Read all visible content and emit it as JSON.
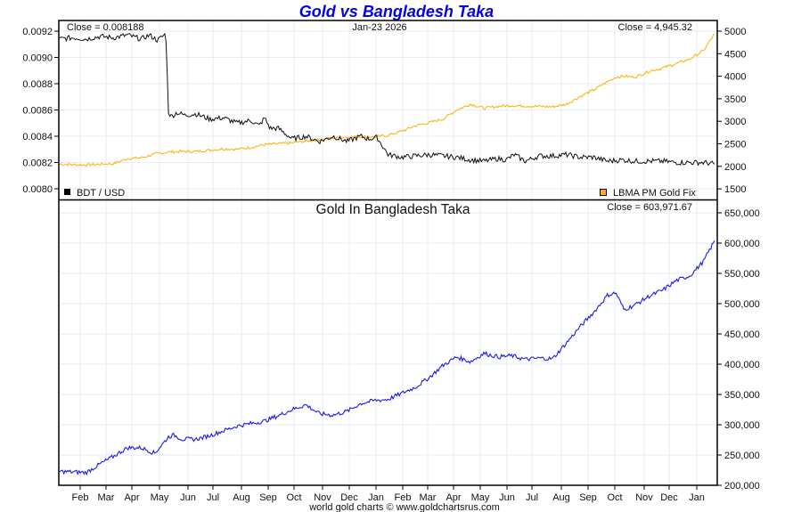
{
  "chart_data": [
    {
      "type": "line",
      "title": "Gold vs Bangladesh Taka",
      "date_label": "Jan-23  2026",
      "left_close_label": "Close = 0.008188",
      "right_close_label": "Close = 4,945.32",
      "x_ticks": [
        "Feb",
        "Mar",
        "Apr",
        "May",
        "Jun",
        "Jul",
        "Aug",
        "Sep",
        "Oct",
        "Nov",
        "Dec",
        "Jan",
        "Feb",
        "Mar",
        "Apr",
        "May",
        "Jun",
        "Jul",
        "Aug",
        "Sep",
        "Oct",
        "Nov",
        "Dec",
        "Jan"
      ],
      "left_axis": {
        "ticks": [
          "0.0092",
          "0.0090",
          "0.0088",
          "0.0086",
          "0.0084",
          "0.0082",
          "0.0080"
        ],
        "ylim": [
          0.00792,
          0.00928
        ]
      },
      "right_axis": {
        "ticks": [
          "5000",
          "4500",
          "4000",
          "3500",
          "3000",
          "2500",
          "2000",
          "1500"
        ],
        "ylim": [
          1330,
          5150
        ]
      },
      "grid": true,
      "legend": [
        {
          "name": "BDT / USD",
          "color": "#000000",
          "position": "bottom-left"
        },
        {
          "name": "LBMA PM Gold Fix",
          "color": "#ffb000",
          "position": "bottom-right"
        }
      ],
      "series": [
        {
          "name": "BDT / USD",
          "axis": "left",
          "color": "#111111",
          "months_from_start": [
            0,
            0.5,
            1,
            1.5,
            2,
            2.5,
            3,
            3.3,
            3.6,
            3.9,
            4.0,
            4.1,
            4.3,
            4.6,
            5,
            5.5,
            6,
            6.5,
            7,
            7.3,
            7.5,
            7.7,
            8,
            8.5,
            9,
            9.5,
            10,
            10.5,
            11,
            11.3,
            11.6,
            12,
            12.5,
            13,
            13.5,
            14,
            14.5,
            15,
            15.5,
            16,
            16.3,
            16.6,
            17,
            17.5,
            18,
            18.5,
            19,
            19.5,
            20,
            20.5,
            21,
            21.5,
            22,
            22.5,
            23,
            23.5,
            23.9
          ],
          "values": [
            0.00914,
            0.00915,
            0.00914,
            0.00916,
            0.00915,
            0.00917,
            0.00914,
            0.00917,
            0.00913,
            0.00918,
            0.00858,
            0.00855,
            0.00858,
            0.00856,
            0.00857,
            0.00853,
            0.00854,
            0.0085,
            0.00852,
            0.00848,
            0.00854,
            0.00846,
            0.00846,
            0.00838,
            0.0084,
            0.00836,
            0.0084,
            0.00836,
            0.0084,
            0.00838,
            0.00839,
            0.00826,
            0.00824,
            0.00825,
            0.00826,
            0.00825,
            0.00824,
            0.00822,
            0.00821,
            0.00823,
            0.00822,
            0.00826,
            0.00821,
            0.00825,
            0.00825,
            0.00826,
            0.00824,
            0.00824,
            0.00821,
            0.00822,
            0.00821,
            0.00821,
            0.00821,
            0.0082,
            0.0082,
            0.0082,
            0.008188
          ]
        },
        {
          "name": "LBMA PM Gold Fix",
          "axis": "right",
          "color": "#ffb000",
          "months_from_start": [
            0,
            1,
            2,
            2.5,
            3,
            3.5,
            4,
            4.5,
            5,
            5.5,
            6,
            6.5,
            7,
            7.5,
            8,
            8.5,
            9,
            9.5,
            10,
            10.5,
            11,
            11.5,
            12,
            12.5,
            13,
            13.5,
            14,
            14.5,
            15,
            15.5,
            16,
            16.5,
            17,
            17.5,
            18,
            18.5,
            19,
            19.5,
            20,
            20.3,
            20.6,
            21,
            21.5,
            22,
            22.5,
            23,
            23.5,
            23.9
          ],
          "values": [
            2050,
            2030,
            2060,
            2170,
            2190,
            2270,
            2320,
            2330,
            2330,
            2360,
            2390,
            2380,
            2420,
            2480,
            2500,
            2520,
            2560,
            2590,
            2630,
            2650,
            2660,
            2650,
            2690,
            2780,
            2900,
            2970,
            3050,
            3250,
            3380,
            3290,
            3330,
            3350,
            3340,
            3330,
            3320,
            3380,
            3550,
            3700,
            3880,
            3980,
            4000,
            3980,
            4110,
            4180,
            4280,
            4380,
            4570,
            4945
          ]
        }
      ]
    },
    {
      "type": "line",
      "title": "Gold In Bangladesh Taka",
      "close_label": "Close = 603,971.67",
      "x_ticks": [
        "Feb",
        "Mar",
        "Apr",
        "May",
        "Jun",
        "Jul",
        "Aug",
        "Sep",
        "Oct",
        "Nov",
        "Dec",
        "Jan",
        "Feb",
        "Mar",
        "Apr",
        "May",
        "Jun",
        "Jul",
        "Aug",
        "Sep",
        "Oct",
        "Nov",
        "Dec",
        "Jan"
      ],
      "right_axis": {
        "ticks": [
          "650,000",
          "600,000",
          "550,000",
          "500,000",
          "450,000",
          "400,000",
          "350,000",
          "300,000",
          "250,000",
          "200,000"
        ],
        "ylim": [
          200000,
          650000
        ]
      },
      "grid": true,
      "series": [
        {
          "name": "Gold In Bangladesh Taka",
          "color": "#1a1aee",
          "months_from_start": [
            0,
            0.5,
            1,
            1.5,
            2,
            2.5,
            3,
            3.5,
            4,
            4.2,
            4.5,
            5,
            5.5,
            6,
            6.5,
            7,
            7.5,
            8,
            8.5,
            9,
            9.5,
            10,
            10.5,
            11,
            11.5,
            12,
            12.5,
            13,
            13.5,
            14,
            14.5,
            15,
            15.5,
            16,
            16.5,
            17,
            17.5,
            18,
            18.5,
            19,
            19.5,
            20,
            20.3,
            20.6,
            21,
            21.5,
            22,
            22.5,
            23,
            23.5,
            23.9
          ],
          "values": [
            223000,
            222000,
            221000,
            235000,
            248000,
            262000,
            262000,
            253000,
            280000,
            283000,
            276000,
            276000,
            282000,
            290000,
            298000,
            302000,
            306000,
            315000,
            325000,
            333000,
            318000,
            316000,
            322000,
            335000,
            340000,
            342000,
            352000,
            362000,
            378000,
            398000,
            412000,
            404000,
            418000,
            412000,
            414000,
            408000,
            410000,
            409000,
            435000,
            462000,
            486000,
            514000,
            518000,
            490000,
            498000,
            512000,
            522000,
            538000,
            546000,
            570000,
            604000
          ]
        }
      ]
    }
  ],
  "footer": "world gold charts © www.goldchartsrus.com"
}
